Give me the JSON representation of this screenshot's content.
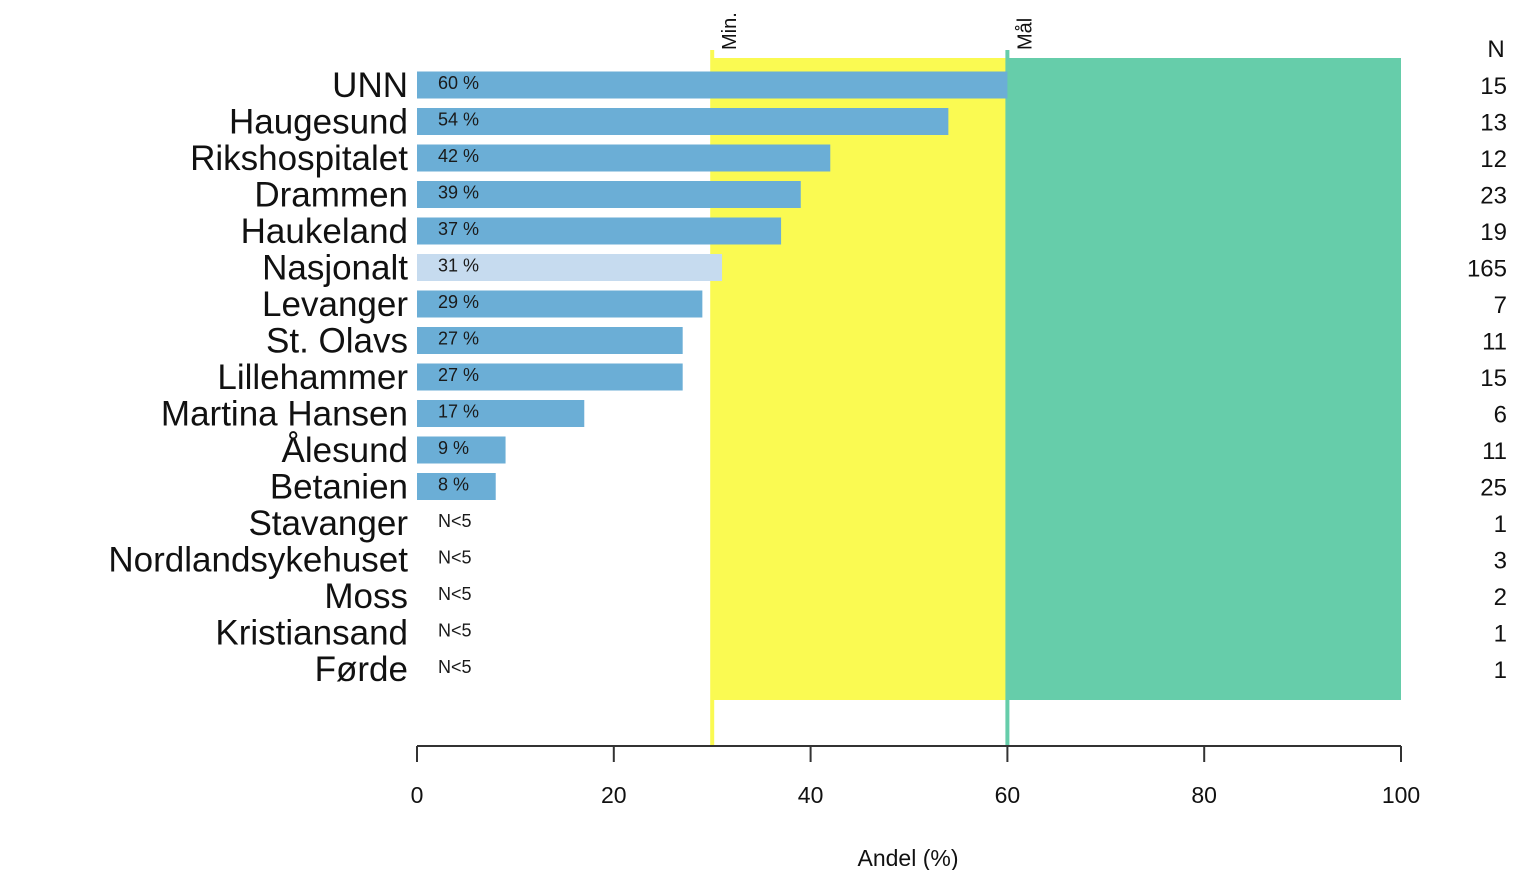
{
  "chart_data": {
    "type": "bar",
    "orientation": "horizontal",
    "categories": [
      "UNN",
      "Haugesund",
      "Rikshospitalet",
      "Drammen",
      "Haukeland",
      "Nasjonalt",
      "Levanger",
      "St. Olavs",
      "Lillehammer",
      "Martina Hansen",
      "Ålesund",
      "Betanien",
      "Stavanger",
      "Nordlandsykehuset",
      "Moss",
      "Kristiansand",
      "Førde"
    ],
    "values": [
      60,
      54,
      42,
      39,
      37,
      31,
      29,
      27,
      27,
      17,
      9,
      8,
      null,
      null,
      null,
      null,
      null
    ],
    "bar_labels": [
      "60 %",
      "54 %",
      "42 %",
      "39 %",
      "37 %",
      "31 %",
      "29 %",
      "27 %",
      "27 %",
      "17 %",
      "9 %",
      "8 %",
      "N<5",
      "N<5",
      "N<5",
      "N<5",
      "N<5"
    ],
    "n_values": [
      "15",
      "13",
      "12",
      "23",
      "19",
      "165",
      "7",
      "11",
      "15",
      "6",
      "11",
      "25",
      "1",
      "3",
      "2",
      "1",
      "1"
    ],
    "n_header": "N",
    "highlight_category": "Nasjonalt",
    "xlabel": "Andel (%)",
    "xlim": [
      0,
      100
    ],
    "xticks": [
      "0",
      "20",
      "40",
      "60",
      "80",
      "100"
    ],
    "reference_bands": [
      {
        "label": "Min.",
        "from": 30,
        "to": 60,
        "color": "#fafa52"
      },
      {
        "label": "Mål",
        "from": 60,
        "to": 100,
        "color": "#66cdaa"
      }
    ],
    "colors": {
      "bar": "#6baed6",
      "highlight": "#c6dbef",
      "min_line": "#fafa52",
      "goal_line": "#66cdaa"
    }
  }
}
